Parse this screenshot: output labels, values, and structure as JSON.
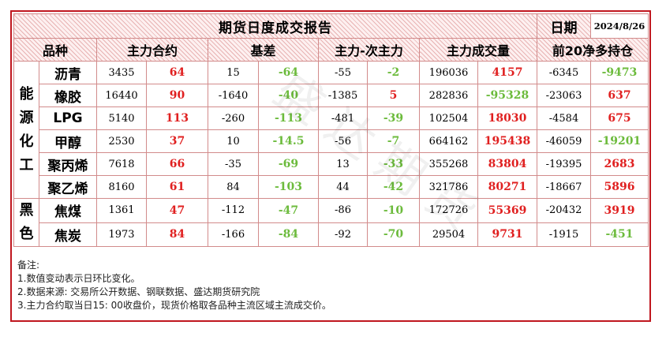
{
  "report": {
    "title": "期货日度成交报告",
    "date_label": "日期",
    "date_value": "2024/8/26",
    "headers": [
      "品种",
      "主力合约",
      "基差",
      "主力-次主力",
      "主力成交量",
      "前20净多持仓"
    ]
  },
  "groups": [
    {
      "name": "能源化工",
      "rows": [
        {
          "product": "沥青",
          "main_price": "3435",
          "main_chg": "64",
          "main_dir": "up",
          "basis": "15",
          "basis_chg": "-64",
          "basis_dir": "down",
          "spread": "-55",
          "spread_chg": "-2",
          "spread_dir": "down",
          "volume": "196036",
          "volume_chg": "4157",
          "volume_dir": "up",
          "net_long": "-6345",
          "net_long_chg": "-9473",
          "net_long_dir": "down"
        },
        {
          "product": "橡胶",
          "main_price": "16440",
          "main_chg": "90",
          "main_dir": "up",
          "basis": "-1640",
          "basis_chg": "-40",
          "basis_dir": "down",
          "spread": "-1385",
          "spread_chg": "5",
          "spread_dir": "up",
          "volume": "282836",
          "volume_chg": "-95328",
          "volume_dir": "down",
          "net_long": "-23063",
          "net_long_chg": "637",
          "net_long_dir": "up"
        },
        {
          "product": "LPG",
          "main_price": "5140",
          "main_chg": "113",
          "main_dir": "up",
          "basis": "-260",
          "basis_chg": "-113",
          "basis_dir": "down",
          "spread": "-481",
          "spread_chg": "-39",
          "spread_dir": "down",
          "volume": "102504",
          "volume_chg": "18030",
          "volume_dir": "up",
          "net_long": "-4584",
          "net_long_chg": "675",
          "net_long_dir": "up"
        },
        {
          "product": "甲醇",
          "main_price": "2530",
          "main_chg": "37",
          "main_dir": "up",
          "basis": "10",
          "basis_chg": "-14.5",
          "basis_dir": "down",
          "spread": "-56",
          "spread_chg": "-7",
          "spread_dir": "down",
          "volume": "664162",
          "volume_chg": "195438",
          "volume_dir": "up",
          "net_long": "-46059",
          "net_long_chg": "-19201",
          "net_long_dir": "down"
        },
        {
          "product": "聚丙烯",
          "main_price": "7618",
          "main_chg": "66",
          "main_dir": "up",
          "basis": "-35",
          "basis_chg": "-69",
          "basis_dir": "down",
          "spread": "13",
          "spread_chg": "-33",
          "spread_dir": "down",
          "volume": "355268",
          "volume_chg": "83804",
          "volume_dir": "up",
          "net_long": "-19395",
          "net_long_chg": "2683",
          "net_long_dir": "up"
        },
        {
          "product": "聚乙烯",
          "main_price": "8160",
          "main_chg": "61",
          "main_dir": "up",
          "basis": "84",
          "basis_chg": "-103",
          "basis_dir": "down",
          "spread": "44",
          "spread_chg": "-42",
          "spread_dir": "down",
          "volume": "321786",
          "volume_chg": "80271",
          "volume_dir": "up",
          "net_long": "-18667",
          "net_long_chg": "5896",
          "net_long_dir": "up"
        }
      ]
    },
    {
      "name": "黑色",
      "rows": [
        {
          "product": "焦煤",
          "main_price": "1361",
          "main_chg": "47",
          "main_dir": "up",
          "basis": "-112",
          "basis_chg": "-47",
          "basis_dir": "down",
          "spread": "-86",
          "spread_chg": "-10",
          "spread_dir": "down",
          "volume": "172726",
          "volume_chg": "55369",
          "volume_dir": "up",
          "net_long": "-20432",
          "net_long_chg": "3919",
          "net_long_dir": "up"
        },
        {
          "product": "焦炭",
          "main_price": "1973",
          "main_chg": "84",
          "main_dir": "up",
          "basis": "-166",
          "basis_chg": "-84",
          "basis_dir": "down",
          "spread": "-92",
          "spread_chg": "-70",
          "spread_dir": "down",
          "volume": "29504",
          "volume_chg": "9731",
          "volume_dir": "up",
          "net_long": "-1915",
          "net_long_chg": "-451",
          "net_long_dir": "down"
        }
      ]
    }
  ],
  "notes": [
    "备注:",
    "1.数值变动表示日环比变化。",
    "2.数据来源: 交易所公开数据、钢联数据、盛达期货研究院",
    "3.主力合约取当日15: 00收盘价，现货价格取各品种主流区域主流成交价。"
  ],
  "colors": {
    "border": "#c0171f",
    "up": "#e02020",
    "down": "#6cbb3c"
  }
}
